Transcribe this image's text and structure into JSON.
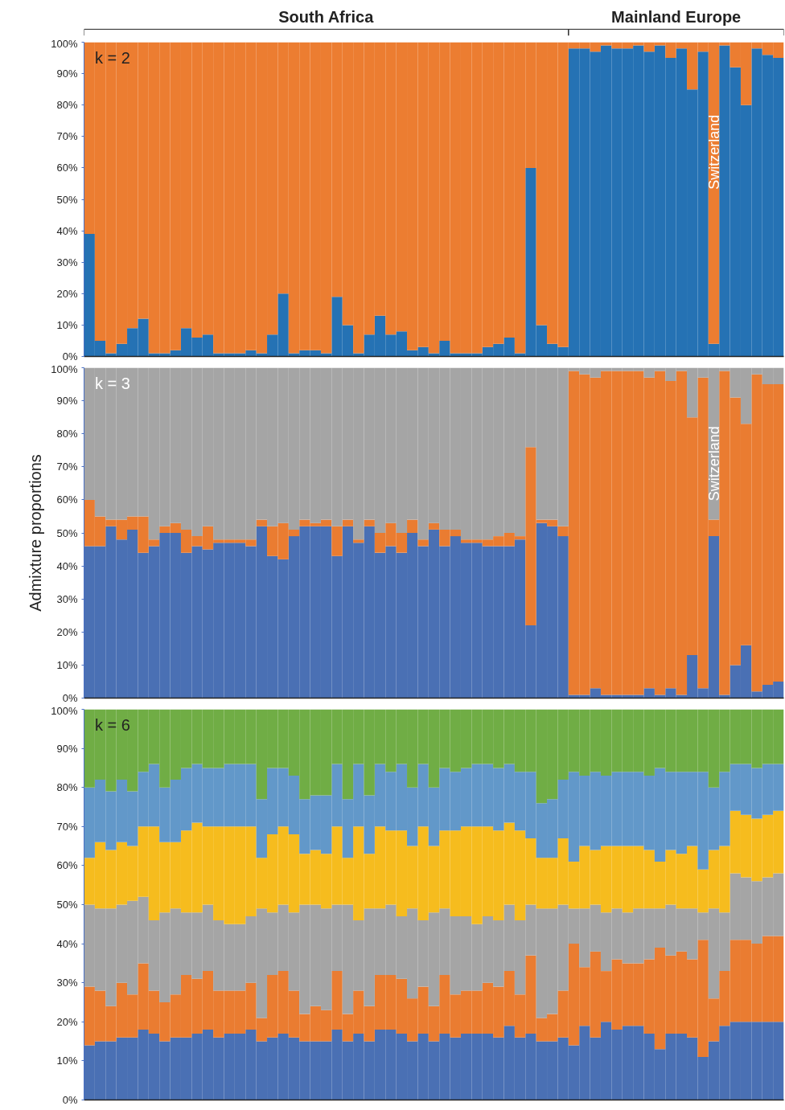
{
  "chart_data": [
    {
      "type": "bar",
      "stacked": true,
      "tick_labels": "y",
      "annotations": [
        "South Africa",
        "Mainland Europe",
        "k = 2",
        "Switzerland"
      ],
      "categories": [
        null,
        null,
        null,
        null,
        null,
        null,
        null,
        null,
        null,
        null,
        null,
        null,
        null,
        null,
        null,
        null,
        null,
        null,
        null,
        null,
        null,
        null,
        null,
        null,
        null,
        null,
        null,
        null,
        null,
        null,
        null,
        null,
        null,
        null,
        null,
        null,
        null,
        null,
        null,
        null,
        null,
        null,
        null,
        null,
        null,
        null,
        null,
        null,
        null,
        null,
        null,
        null,
        null,
        null,
        null,
        null,
        null,
        null,
        null,
        null,
        null,
        null,
        null,
        null,
        null
      ],
      "ylim": [
        0,
        100
      ],
      "yticks": [
        {
          "value": 0,
          "label": "0%"
        },
        {
          "value": 10,
          "label": "10%"
        },
        {
          "value": 20,
          "label": "20%"
        },
        {
          "value": 30,
          "label": "30%"
        },
        {
          "value": 40,
          "label": "40%"
        },
        {
          "value": 50,
          "label": "50%"
        },
        {
          "value": 60,
          "label": "60%"
        },
        {
          "value": 70,
          "label": "70%"
        },
        {
          "value": 80,
          "label": "80%"
        },
        {
          "value": 90,
          "label": "90%"
        },
        {
          "value": 100,
          "label": "100%"
        }
      ],
      "series": [
        {
          "color": "#2572b4",
          "values": [
            39,
            5,
            1,
            4,
            9,
            12,
            1,
            1,
            2,
            9,
            6,
            7,
            1,
            1,
            1,
            2,
            1,
            7,
            20,
            1,
            2,
            2,
            1,
            19,
            10,
            1,
            7,
            13,
            7,
            8,
            2,
            3,
            1,
            5,
            1,
            1,
            1,
            3,
            4,
            6,
            1,
            60,
            10,
            4,
            3,
            98,
            98,
            97,
            99,
            98,
            98,
            99,
            97,
            99,
            95,
            98,
            85,
            97,
            4,
            99,
            92,
            80,
            98,
            96,
            95
          ]
        },
        {
          "color": "#ec7d31",
          "values": [
            61,
            95,
            99,
            96,
            91,
            88,
            99,
            99,
            98,
            91,
            94,
            93,
            99,
            99,
            99,
            98,
            99,
            93,
            80,
            99,
            98,
            98,
            99,
            81,
            90,
            99,
            93,
            87,
            93,
            92,
            98,
            97,
            99,
            95,
            99,
            99,
            99,
            97,
            96,
            94,
            99,
            40,
            90,
            96,
            97,
            2,
            2,
            3,
            1,
            2,
            2,
            1,
            3,
            1,
            5,
            2,
            15,
            3,
            96,
            1,
            8,
            20,
            2,
            4,
            5
          ]
        }
      ]
    },
    {
      "type": "bar",
      "stacked": true,
      "tick_labels": "y",
      "ylabel": "Admixture proportions",
      "annotations": [
        "k = 3",
        "Switzerland"
      ],
      "categories": [
        null,
        null,
        null,
        null,
        null,
        null,
        null,
        null,
        null,
        null,
        null,
        null,
        null,
        null,
        null,
        null,
        null,
        null,
        null,
        null,
        null,
        null,
        null,
        null,
        null,
        null,
        null,
        null,
        null,
        null,
        null,
        null,
        null,
        null,
        null,
        null,
        null,
        null,
        null,
        null,
        null,
        null,
        null,
        null,
        null,
        null,
        null,
        null,
        null,
        null,
        null,
        null,
        null,
        null,
        null,
        null,
        null,
        null,
        null,
        null,
        null,
        null,
        null,
        null,
        null
      ],
      "ylim": [
        0,
        100
      ],
      "yticks": [
        {
          "value": 0,
          "label": "0%"
        },
        {
          "value": 10,
          "label": "10%"
        },
        {
          "value": 20,
          "label": "20%"
        },
        {
          "value": 30,
          "label": "30%"
        },
        {
          "value": 40,
          "label": "40%"
        },
        {
          "value": 50,
          "label": "50%"
        },
        {
          "value": 60,
          "label": "60%"
        },
        {
          "value": 70,
          "label": "70%"
        },
        {
          "value": 80,
          "label": "80%"
        },
        {
          "value": 90,
          "label": "90%"
        },
        {
          "value": 100,
          "label": "100%"
        }
      ],
      "series": [
        {
          "color": "#4a70b4",
          "values": [
            46,
            46,
            52,
            48,
            51,
            44,
            46,
            50,
            50,
            44,
            46,
            45,
            47,
            47,
            47,
            46,
            52,
            43,
            42,
            49,
            52,
            52,
            52,
            43,
            52,
            47,
            52,
            44,
            46,
            44,
            50,
            46,
            51,
            46,
            49,
            47,
            47,
            46,
            46,
            46,
            48,
            22,
            53,
            52,
            49,
            1,
            1,
            3,
            1,
            1,
            1,
            1,
            3,
            1,
            3,
            1,
            13,
            3,
            49,
            1,
            10,
            16,
            2,
            4,
            5
          ]
        },
        {
          "color": "#ea7c31",
          "values": [
            14,
            9,
            2,
            6,
            4,
            11,
            2,
            2,
            3,
            7,
            3,
            7,
            1,
            1,
            1,
            2,
            2,
            9,
            11,
            2,
            2,
            1,
            2,
            9,
            2,
            1,
            2,
            6,
            7,
            6,
            4,
            2,
            2,
            5,
            2,
            1,
            1,
            2,
            3,
            4,
            1,
            54,
            1,
            2,
            3,
            98,
            97,
            94,
            98,
            98,
            98,
            98,
            94,
            98,
            93,
            98,
            72,
            94,
            5,
            98,
            81,
            67,
            96,
            91,
            90
          ]
        },
        {
          "color": "#a5a5a5",
          "values": [
            40,
            45,
            46,
            46,
            45,
            45,
            52,
            48,
            47,
            49,
            51,
            48,
            52,
            52,
            52,
            52,
            46,
            48,
            47,
            49,
            46,
            47,
            46,
            48,
            46,
            52,
            46,
            50,
            47,
            50,
            46,
            52,
            47,
            49,
            49,
            52,
            52,
            52,
            51,
            50,
            51,
            24,
            46,
            46,
            48,
            1,
            2,
            3,
            1,
            1,
            1,
            1,
            3,
            1,
            4,
            1,
            15,
            3,
            46,
            1,
            9,
            17,
            2,
            5,
            5
          ]
        }
      ]
    },
    {
      "type": "bar",
      "stacked": true,
      "tick_labels": "y",
      "annotations": [
        "k = 6"
      ],
      "categories": [
        null,
        null,
        null,
        null,
        null,
        null,
        null,
        null,
        null,
        null,
        null,
        null,
        null,
        null,
        null,
        null,
        null,
        null,
        null,
        null,
        null,
        null,
        null,
        null,
        null,
        null,
        null,
        null,
        null,
        null,
        null,
        null,
        null,
        null,
        null,
        null,
        null,
        null,
        null,
        null,
        null,
        null,
        null,
        null,
        null,
        null,
        null,
        null,
        null,
        null,
        null,
        null,
        null,
        null,
        null,
        null,
        null,
        null,
        null,
        null,
        null,
        null,
        null,
        null,
        null
      ],
      "ylim": [
        0,
        100
      ],
      "yticks": [
        {
          "value": 0,
          "label": "0%"
        },
        {
          "value": 10,
          "label": "10%"
        },
        {
          "value": 20,
          "label": "20%"
        },
        {
          "value": 30,
          "label": "30%"
        },
        {
          "value": 40,
          "label": "40%"
        },
        {
          "value": 50,
          "label": "50%"
        },
        {
          "value": 60,
          "label": "60%"
        },
        {
          "value": 70,
          "label": "70%"
        },
        {
          "value": 80,
          "label": "80%"
        },
        {
          "value": 90,
          "label": "90%"
        },
        {
          "value": 100,
          "label": "100%"
        }
      ],
      "series": [
        {
          "color": "#4a70b4",
          "values": [
            14,
            15,
            15,
            16,
            16,
            18,
            17,
            15,
            16,
            16,
            17,
            18,
            16,
            17,
            17,
            18,
            15,
            16,
            17,
            16,
            15,
            15,
            15,
            18,
            15,
            17,
            15,
            18,
            18,
            17,
            15,
            17,
            15,
            17,
            16,
            17,
            17,
            17,
            16,
            19,
            16,
            17,
            15,
            15,
            16,
            14,
            19,
            16,
            20,
            18,
            19,
            19,
            17,
            13,
            17,
            17,
            16,
            11,
            15,
            19,
            20,
            20,
            20,
            20,
            20
          ]
        },
        {
          "color": "#ea7c31",
          "values": [
            15,
            13,
            9,
            14,
            11,
            17,
            11,
            10,
            11,
            16,
            14,
            15,
            12,
            11,
            11,
            12,
            6,
            16,
            16,
            12,
            7,
            9,
            8,
            15,
            7,
            11,
            9,
            14,
            14,
            14,
            11,
            12,
            9,
            15,
            11,
            11,
            11,
            13,
            13,
            14,
            11,
            20,
            6,
            7,
            12,
            26,
            15,
            22,
            13,
            18,
            16,
            16,
            19,
            26,
            20,
            21,
            20,
            30,
            11,
            14,
            21,
            21,
            20,
            22,
            22
          ]
        },
        {
          "color": "#a5a5a5",
          "values": [
            21,
            21,
            25,
            20,
            24,
            17,
            18,
            23,
            22,
            16,
            17,
            17,
            18,
            17,
            17,
            17,
            28,
            16,
            17,
            20,
            28,
            26,
            26,
            17,
            28,
            18,
            25,
            17,
            18,
            16,
            23,
            17,
            24,
            17,
            20,
            19,
            17,
            17,
            17,
            17,
            19,
            13,
            28,
            27,
            22,
            9,
            15,
            12,
            15,
            13,
            13,
            14,
            13,
            10,
            13,
            11,
            13,
            7,
            23,
            15,
            17,
            16,
            16,
            15,
            16
          ]
        },
        {
          "color": "#f6bc1e",
          "values": [
            12,
            17,
            15,
            16,
            14,
            18,
            24,
            18,
            17,
            21,
            23,
            20,
            24,
            25,
            25,
            23,
            13,
            20,
            20,
            20,
            13,
            14,
            14,
            20,
            12,
            24,
            14,
            21,
            19,
            22,
            16,
            24,
            17,
            20,
            22,
            23,
            25,
            23,
            23,
            21,
            23,
            17,
            13,
            13,
            17,
            12,
            16,
            14,
            17,
            16,
            17,
            16,
            15,
            12,
            14,
            14,
            16,
            11,
            15,
            17,
            16,
            16,
            16,
            16,
            16
          ]
        },
        {
          "color": "#6298c9",
          "values": [
            18,
            16,
            15,
            16,
            14,
            14,
            16,
            14,
            16,
            16,
            15,
            15,
            15,
            16,
            16,
            16,
            15,
            17,
            15,
            15,
            14,
            14,
            15,
            16,
            15,
            16,
            15,
            16,
            15,
            17,
            15,
            16,
            15,
            16,
            15,
            15,
            16,
            16,
            16,
            15,
            15,
            17,
            14,
            15,
            15,
            23,
            18,
            20,
            18,
            19,
            19,
            19,
            19,
            24,
            20,
            21,
            19,
            25,
            16,
            19,
            12,
            13,
            13,
            13,
            12
          ]
        },
        {
          "color": "#70ad45",
          "values": [
            20,
            18,
            21,
            18,
            21,
            16,
            14,
            20,
            18,
            15,
            14,
            15,
            15,
            14,
            14,
            14,
            23,
            15,
            15,
            17,
            23,
            22,
            22,
            14,
            23,
            14,
            22,
            14,
            16,
            14,
            20,
            14,
            20,
            15,
            16,
            15,
            14,
            14,
            15,
            14,
            16,
            16,
            24,
            23,
            18,
            16,
            17,
            16,
            17,
            16,
            16,
            16,
            17,
            15,
            16,
            16,
            16,
            16,
            20,
            16,
            14,
            14,
            15,
            14,
            14
          ]
        }
      ]
    }
  ]
}
